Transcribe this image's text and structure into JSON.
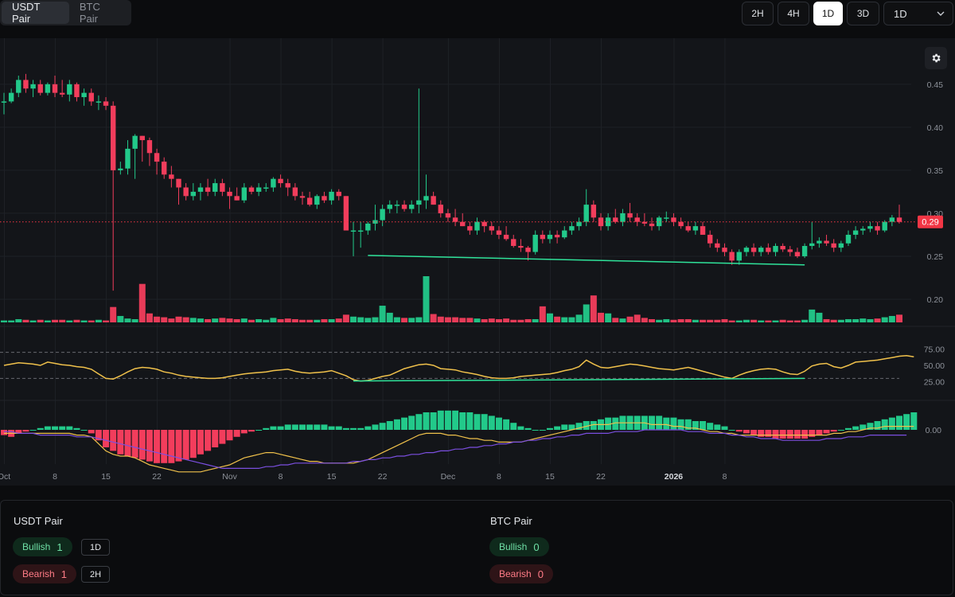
{
  "pair_tabs": [
    {
      "label": "USDT Pair",
      "active": true
    },
    {
      "label": "BTC Pair",
      "active": false
    }
  ],
  "timeframes": [
    {
      "label": "2H",
      "active": false
    },
    {
      "label": "4H",
      "active": false
    },
    {
      "label": "1D",
      "active": true
    },
    {
      "label": "3D",
      "active": false
    }
  ],
  "interval_select": {
    "value": "1D"
  },
  "chart": {
    "price_label": "0.29",
    "price_label_color": "#f23645",
    "up_color": "#22c98a",
    "down_color": "#f23d5c",
    "divergence_color": "#2fe39a",
    "rsi_color": "#f0c14b",
    "macd_signal_color": "#7b4fe0",
    "y_ticks": [
      "0.45",
      "0.40",
      "0.35",
      "0.30",
      "0.25",
      "0.20"
    ],
    "rsi_ticks": [
      "75.00",
      "50.00",
      "25.00"
    ],
    "macd_ticks": [
      "0.00"
    ],
    "x_labels": [
      "Oct",
      "8",
      "15",
      "22",
      "Nov",
      "8",
      "15",
      "22",
      "Dec",
      "8",
      "15",
      "22",
      "2026",
      "8"
    ]
  },
  "chart_data": {
    "type": "candlestick",
    "price_axis": {
      "range": [
        0.175,
        0.485
      ],
      "ticks": [
        0.45,
        0.4,
        0.35,
        0.3,
        0.25,
        0.2
      ]
    },
    "current_price": 0.29,
    "ohlc": [
      [
        0.43,
        0.44,
        0.415,
        0.43
      ],
      [
        0.43,
        0.445,
        0.428,
        0.44
      ],
      [
        0.44,
        0.46,
        0.435,
        0.455
      ],
      [
        0.455,
        0.462,
        0.44,
        0.445
      ],
      [
        0.445,
        0.455,
        0.435,
        0.45
      ],
      [
        0.45,
        0.455,
        0.437,
        0.44
      ],
      [
        0.44,
        0.452,
        0.437,
        0.45
      ],
      [
        0.45,
        0.46,
        0.435,
        0.44
      ],
      [
        0.44,
        0.455,
        0.435,
        0.438
      ],
      [
        0.438,
        0.455,
        0.43,
        0.45
      ],
      [
        0.45,
        0.452,
        0.43,
        0.435
      ],
      [
        0.435,
        0.445,
        0.425,
        0.44
      ],
      [
        0.44,
        0.445,
        0.425,
        0.43
      ],
      [
        0.43,
        0.437,
        0.42,
        0.43
      ],
      [
        0.43,
        0.435,
        0.42,
        0.425
      ],
      [
        0.425,
        0.43,
        0.21,
        0.35
      ],
      [
        0.35,
        0.36,
        0.345,
        0.352
      ],
      [
        0.352,
        0.385,
        0.345,
        0.375
      ],
      [
        0.375,
        0.392,
        0.34,
        0.39
      ],
      [
        0.39,
        0.39,
        0.36,
        0.385
      ],
      [
        0.385,
        0.388,
        0.355,
        0.37
      ],
      [
        0.37,
        0.375,
        0.345,
        0.36
      ],
      [
        0.36,
        0.365,
        0.34,
        0.345
      ],
      [
        0.345,
        0.355,
        0.33,
        0.34
      ],
      [
        0.34,
        0.34,
        0.31,
        0.33
      ],
      [
        0.33,
        0.335,
        0.315,
        0.32
      ],
      [
        0.32,
        0.335,
        0.315,
        0.325
      ],
      [
        0.325,
        0.335,
        0.315,
        0.33
      ],
      [
        0.33,
        0.34,
        0.32,
        0.325
      ],
      [
        0.325,
        0.34,
        0.32,
        0.335
      ],
      [
        0.335,
        0.34,
        0.32,
        0.325
      ],
      [
        0.325,
        0.33,
        0.305,
        0.32
      ],
      [
        0.32,
        0.33,
        0.315,
        0.315
      ],
      [
        0.315,
        0.335,
        0.312,
        0.33
      ],
      [
        0.33,
        0.332,
        0.322,
        0.325
      ],
      [
        0.325,
        0.335,
        0.32,
        0.33
      ],
      [
        0.33,
        0.335,
        0.325,
        0.33
      ],
      [
        0.33,
        0.342,
        0.325,
        0.34
      ],
      [
        0.34,
        0.345,
        0.33,
        0.335
      ],
      [
        0.335,
        0.34,
        0.32,
        0.33
      ],
      [
        0.33,
        0.335,
        0.315,
        0.32
      ],
      [
        0.32,
        0.325,
        0.31,
        0.318
      ],
      [
        0.318,
        0.325,
        0.308,
        0.31
      ],
      [
        0.31,
        0.322,
        0.305,
        0.32
      ],
      [
        0.32,
        0.325,
        0.312,
        0.315
      ],
      [
        0.315,
        0.328,
        0.31,
        0.325
      ],
      [
        0.325,
        0.328,
        0.315,
        0.32
      ],
      [
        0.32,
        0.32,
        0.28,
        0.28
      ],
      [
        0.28,
        0.29,
        0.25,
        0.28
      ],
      [
        0.28,
        0.29,
        0.26,
        0.28
      ],
      [
        0.28,
        0.29,
        0.275,
        0.288
      ],
      [
        0.288,
        0.31,
        0.28,
        0.292
      ],
      [
        0.292,
        0.31,
        0.285,
        0.305
      ],
      [
        0.305,
        0.315,
        0.3,
        0.31
      ],
      [
        0.31,
        0.315,
        0.3,
        0.31
      ],
      [
        0.31,
        0.315,
        0.302,
        0.305
      ],
      [
        0.305,
        0.315,
        0.3,
        0.31
      ],
      [
        0.31,
        0.445,
        0.3,
        0.315
      ],
      [
        0.315,
        0.345,
        0.305,
        0.32
      ],
      [
        0.32,
        0.325,
        0.31,
        0.31
      ],
      [
        0.31,
        0.315,
        0.295,
        0.3
      ],
      [
        0.3,
        0.305,
        0.29,
        0.295
      ],
      [
        0.295,
        0.305,
        0.285,
        0.29
      ],
      [
        0.29,
        0.3,
        0.285,
        0.285
      ],
      [
        0.285,
        0.29,
        0.275,
        0.28
      ],
      [
        0.28,
        0.295,
        0.275,
        0.29
      ],
      [
        0.29,
        0.292,
        0.278,
        0.285
      ],
      [
        0.285,
        0.29,
        0.275,
        0.28
      ],
      [
        0.28,
        0.285,
        0.27,
        0.275
      ],
      [
        0.275,
        0.285,
        0.268,
        0.27
      ],
      [
        0.27,
        0.275,
        0.26,
        0.262
      ],
      [
        0.262,
        0.27,
        0.255,
        0.26
      ],
      [
        0.26,
        0.262,
        0.245,
        0.255
      ],
      [
        0.255,
        0.28,
        0.252,
        0.275
      ],
      [
        0.275,
        0.28,
        0.265,
        0.27
      ],
      [
        0.27,
        0.28,
        0.265,
        0.275
      ],
      [
        0.275,
        0.28,
        0.265,
        0.272
      ],
      [
        0.272,
        0.285,
        0.27,
        0.28
      ],
      [
        0.28,
        0.29,
        0.275,
        0.285
      ],
      [
        0.285,
        0.295,
        0.28,
        0.29
      ],
      [
        0.29,
        0.328,
        0.285,
        0.31
      ],
      [
        0.31,
        0.315,
        0.29,
        0.295
      ],
      [
        0.295,
        0.3,
        0.28,
        0.285
      ],
      [
        0.285,
        0.3,
        0.28,
        0.295
      ],
      [
        0.295,
        0.305,
        0.288,
        0.29
      ],
      [
        0.29,
        0.305,
        0.285,
        0.3
      ],
      [
        0.3,
        0.312,
        0.29,
        0.295
      ],
      [
        0.295,
        0.3,
        0.285,
        0.29
      ],
      [
        0.29,
        0.3,
        0.285,
        0.288
      ],
      [
        0.288,
        0.295,
        0.28,
        0.285
      ],
      [
        0.285,
        0.297,
        0.28,
        0.295
      ],
      [
        0.295,
        0.302,
        0.29,
        0.295
      ],
      [
        0.295,
        0.3,
        0.285,
        0.29
      ],
      [
        0.29,
        0.295,
        0.282,
        0.285
      ],
      [
        0.285,
        0.29,
        0.278,
        0.28
      ],
      [
        0.28,
        0.29,
        0.275,
        0.285
      ],
      [
        0.285,
        0.29,
        0.275,
        0.275
      ],
      [
        0.275,
        0.28,
        0.26,
        0.265
      ],
      [
        0.265,
        0.27,
        0.255,
        0.26
      ],
      [
        0.26,
        0.265,
        0.25,
        0.255
      ],
      [
        0.255,
        0.258,
        0.24,
        0.245
      ],
      [
        0.245,
        0.258,
        0.24,
        0.255
      ],
      [
        0.255,
        0.262,
        0.25,
        0.26
      ],
      [
        0.26,
        0.265,
        0.25,
        0.255
      ],
      [
        0.255,
        0.262,
        0.25,
        0.26
      ],
      [
        0.26,
        0.265,
        0.252,
        0.255
      ],
      [
        0.255,
        0.265,
        0.25,
        0.262
      ],
      [
        0.262,
        0.265,
        0.255,
        0.258
      ],
      [
        0.258,
        0.262,
        0.25,
        0.255
      ],
      [
        0.255,
        0.26,
        0.248,
        0.25
      ],
      [
        0.25,
        0.265,
        0.248,
        0.262
      ],
      [
        0.262,
        0.29,
        0.258,
        0.265
      ],
      [
        0.265,
        0.272,
        0.26,
        0.268
      ],
      [
        0.268,
        0.275,
        0.262,
        0.265
      ],
      [
        0.265,
        0.27,
        0.255,
        0.26
      ],
      [
        0.26,
        0.268,
        0.255,
        0.265
      ],
      [
        0.265,
        0.28,
        0.262,
        0.275
      ],
      [
        0.275,
        0.285,
        0.27,
        0.28
      ],
      [
        0.28,
        0.285,
        0.275,
        0.282
      ],
      [
        0.282,
        0.29,
        0.278,
        0.285
      ],
      [
        0.285,
        0.29,
        0.275,
        0.28
      ],
      [
        0.28,
        0.292,
        0.278,
        0.29
      ],
      [
        0.29,
        0.298,
        0.285,
        0.295
      ],
      [
        0.295,
        0.31,
        0.288,
        0.29
      ]
    ],
    "volume": [
      3,
      3,
      5,
      4,
      3,
      4,
      3,
      4,
      4,
      3,
      4,
      3,
      3,
      4,
      3,
      24,
      10,
      6,
      5,
      60,
      14,
      9,
      8,
      6,
      9,
      8,
      7,
      6,
      5,
      6,
      7,
      6,
      5,
      6,
      4,
      5,
      4,
      7,
      5,
      6,
      5,
      4,
      4,
      4,
      5,
      5,
      6,
      12,
      9,
      8,
      7,
      8,
      26,
      15,
      8,
      7,
      7,
      8,
      72,
      13,
      9,
      8,
      8,
      7,
      7,
      6,
      5,
      6,
      5,
      6,
      4,
      4,
      5,
      5,
      25,
      14,
      9,
      8,
      8,
      12,
      28,
      42,
      15,
      14,
      7,
      6,
      9,
      12,
      7,
      5,
      4,
      5,
      4,
      5,
      5,
      4,
      4,
      4,
      4,
      5,
      3,
      3,
      4,
      4,
      3,
      3,
      3,
      4,
      3,
      3,
      4,
      20,
      15,
      5,
      4,
      4,
      5,
      5,
      6,
      5,
      6,
      8,
      10,
      12
    ],
    "price_divergence": {
      "from_index": 50,
      "to_index": 110,
      "from_price": 0.251,
      "to_price": 0.24
    },
    "rsi": {
      "range": [
        0,
        100
      ],
      "levels": [
        30,
        70
      ],
      "values": [
        50,
        52,
        54,
        53,
        52,
        50,
        55,
        53,
        51,
        50,
        48,
        47,
        44,
        37,
        30,
        29,
        34,
        40,
        45,
        47,
        46,
        44,
        40,
        38,
        35,
        33,
        32,
        31,
        30,
        30,
        31,
        33,
        35,
        37,
        38,
        39,
        40,
        42,
        43,
        44,
        41,
        39,
        38,
        39,
        40,
        42,
        38,
        34,
        28,
        26,
        27,
        30,
        33,
        35,
        40,
        45,
        48,
        51,
        52,
        50,
        45,
        44,
        43,
        40,
        38,
        36,
        33,
        31,
        30,
        30,
        31,
        33,
        34,
        35,
        36,
        37,
        39,
        42,
        44,
        48,
        58,
        52,
        47,
        46,
        48,
        50,
        52,
        51,
        49,
        47,
        45,
        44,
        43,
        45,
        47,
        44,
        41,
        38,
        35,
        32,
        30,
        35,
        39,
        42,
        44,
        45,
        44,
        40,
        37,
        36,
        41,
        49,
        52,
        53,
        48,
        46,
        50,
        55,
        56,
        57,
        58,
        60,
        62,
        64,
        65,
        63
      ]
    },
    "rsi_divergence": {
      "from_index": 48,
      "to_index": 110,
      "from_value": 26,
      "to_value": 30
    },
    "macd": {
      "range": [
        -0.03,
        0.03
      ],
      "histogram": [
        -3,
        -4,
        -2,
        -1,
        0,
        1,
        2,
        2,
        2,
        2,
        1,
        0,
        -2,
        -6,
        -10,
        -12,
        -14,
        -15,
        -16,
        -17,
        -18,
        -19,
        -19,
        -19,
        -18,
        -17,
        -16,
        -14,
        -12,
        -10,
        -8,
        -6,
        -4,
        -2,
        -1,
        0,
        1,
        2,
        2,
        3,
        3,
        3,
        3,
        3,
        3,
        2,
        2,
        1,
        1,
        1,
        2,
        3,
        4,
        5,
        6,
        7,
        8,
        9,
        10,
        10,
        11,
        11,
        11,
        10,
        10,
        9,
        9,
        8,
        7,
        6,
        4,
        2,
        1,
        0,
        0,
        1,
        2,
        3,
        3,
        4,
        5,
        5,
        6,
        7,
        7,
        8,
        8,
        8,
        8,
        8,
        8,
        7,
        7,
        6,
        6,
        5,
        5,
        4,
        3,
        2,
        0,
        -1,
        -2,
        -3,
        -4,
        -4,
        -5,
        -5,
        -5,
        -5,
        -5,
        -4,
        -3,
        -2,
        -1,
        0,
        1,
        2,
        3,
        4,
        5,
        6,
        7,
        8,
        9,
        10
      ],
      "macd_line": [
        -2,
        -2,
        -2,
        -2,
        -2,
        -2,
        -2,
        -2,
        -2,
        -2,
        -3,
        -3,
        -4,
        -8,
        -12,
        -14,
        -15,
        -15,
        -16,
        -18,
        -20,
        -21,
        -22,
        -23,
        -24,
        -24,
        -24,
        -24,
        -23,
        -22,
        -21,
        -20,
        -18,
        -16,
        -15,
        -14,
        -13,
        -13,
        -14,
        -15,
        -16,
        -17,
        -18,
        -18,
        -19,
        -19,
        -19,
        -19,
        -19,
        -18,
        -17,
        -15,
        -13,
        -11,
        -9,
        -7,
        -5,
        -3,
        -2,
        -2,
        -2,
        -3,
        -3,
        -4,
        -5,
        -5,
        -6,
        -6,
        -7,
        -7,
        -7,
        -7,
        -6,
        -5,
        -4,
        -3,
        -2,
        -1,
        0,
        1,
        2,
        3,
        3,
        3,
        4,
        4,
        4,
        4,
        4,
        3,
        3,
        3,
        2,
        2,
        1,
        1,
        0,
        -1,
        -1,
        -2,
        -2,
        -3,
        -3,
        -3,
        -3,
        -3,
        -3,
        -3,
        -3,
        -3,
        -3,
        -3,
        -3,
        -3,
        -2,
        -2,
        -1,
        -1,
        0,
        1,
        1,
        2,
        2,
        2,
        2,
        2
      ],
      "signal_line": [
        -1,
        -1,
        -2,
        -2,
        -2,
        -3,
        -3,
        -3,
        -3,
        -3,
        -4,
        -4,
        -4,
        -5,
        -6,
        -7,
        -8,
        -9,
        -10,
        -11,
        -12,
        -13,
        -14,
        -15,
        -16,
        -17,
        -18,
        -19,
        -20,
        -21,
        -22,
        -22,
        -22,
        -22,
        -22,
        -22,
        -21,
        -21,
        -20,
        -20,
        -19,
        -19,
        -19,
        -19,
        -19,
        -19,
        -19,
        -19,
        -18,
        -18,
        -17,
        -17,
        -16,
        -16,
        -15,
        -15,
        -14,
        -14,
        -13,
        -13,
        -12,
        -12,
        -11,
        -11,
        -10,
        -10,
        -9,
        -9,
        -8,
        -8,
        -7,
        -7,
        -6,
        -6,
        -5,
        -5,
        -4,
        -4,
        -3,
        -3,
        -2,
        -2,
        -2,
        -2,
        -1,
        -1,
        -1,
        -1,
        0,
        0,
        0,
        0,
        0,
        0,
        -1,
        -1,
        -1,
        -2,
        -2,
        -2,
        -3,
        -3,
        -4,
        -4,
        -5,
        -5,
        -5,
        -6,
        -6,
        -6,
        -6,
        -6,
        -6,
        -5,
        -5,
        -5,
        -4,
        -4,
        -4,
        -3,
        -3,
        -3,
        -3,
        -3,
        -3
      ]
    },
    "x_axis_labels": [
      {
        "label": "Oct",
        "index": 0
      },
      {
        "label": "8",
        "index": 7
      },
      {
        "label": "15",
        "index": 14
      },
      {
        "label": "22",
        "index": 21
      },
      {
        "label": "Nov",
        "index": 31
      },
      {
        "label": "8",
        "index": 38
      },
      {
        "label": "15",
        "index": 45
      },
      {
        "label": "22",
        "index": 52
      },
      {
        "label": "Dec",
        "index": 61
      },
      {
        "label": "8",
        "index": 68
      },
      {
        "label": "15",
        "index": 75
      },
      {
        "label": "22",
        "index": 82
      },
      {
        "label": "2026",
        "index": 92
      },
      {
        "label": "8",
        "index": 99
      }
    ]
  },
  "summary": {
    "usdt": {
      "title": "USDT Pair",
      "bullish_label": "Bullish",
      "bullish_count": "1",
      "bearish_label": "Bearish",
      "bearish_count": "1",
      "bullish_tf": "1D",
      "bearish_tf": "2H"
    },
    "btc": {
      "title": "BTC Pair",
      "bullish_label": "Bullish",
      "bullish_count": "0",
      "bearish_label": "Bearish",
      "bearish_count": "0"
    }
  }
}
